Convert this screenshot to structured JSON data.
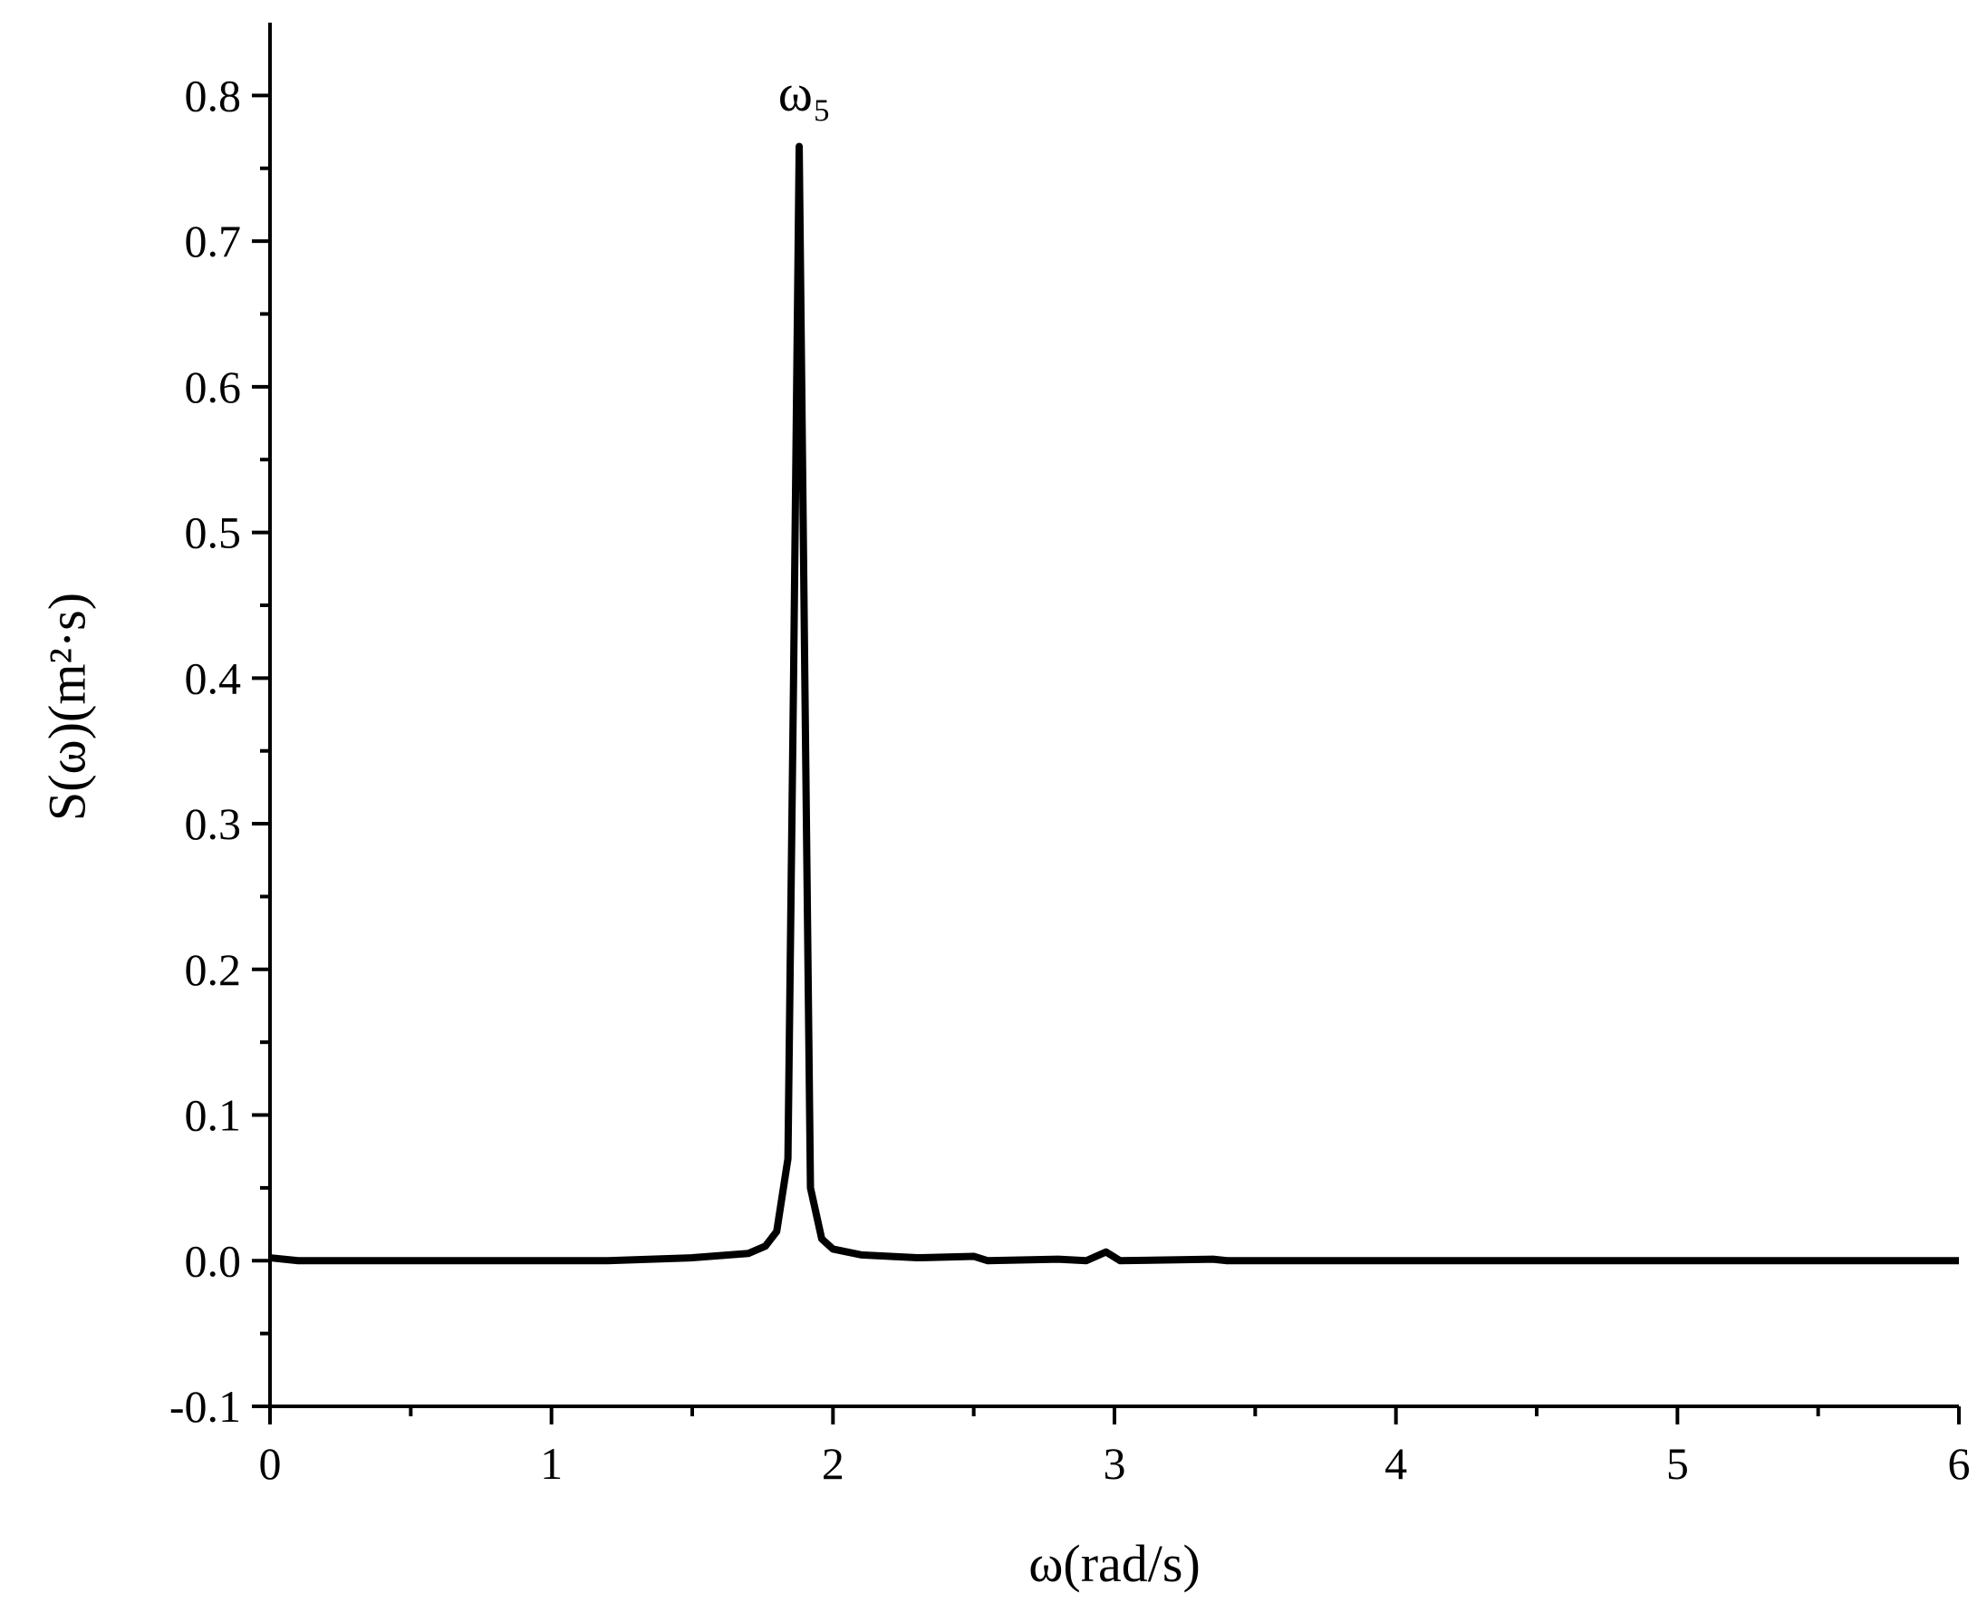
{
  "chart_data": {
    "type": "line",
    "x_label": "ω(rad/s)",
    "y_label": "S(ω)(m²·s)",
    "annotation": "ω₅",
    "x": [
      0,
      0.1,
      1.2,
      1.5,
      1.7,
      1.76,
      1.8,
      1.84,
      1.86,
      1.88,
      1.9,
      1.92,
      1.96,
      2.0,
      2.1,
      2.3,
      2.5,
      2.55,
      2.8,
      2.9,
      2.97,
      3.02,
      3.35,
      3.4,
      6
    ],
    "series": [
      {
        "color": "#000000",
        "values": [
          0.002,
          0,
          0,
          0.002,
          0.005,
          0.01,
          0.02,
          0.07,
          0.4,
          0.765,
          0.4,
          0.05,
          0.015,
          0.008,
          0.004,
          0.002,
          0.003,
          0,
          0.001,
          0,
          0.006,
          0,
          0.001,
          0,
          0
        ]
      }
    ],
    "xlim": [
      0,
      6
    ],
    "ylim": [
      -0.1,
      0.85
    ],
    "xticks": [
      0,
      1,
      2,
      3,
      4,
      5,
      6
    ],
    "yticks": [
      -0.1,
      0.0,
      0.1,
      0.2,
      0.3,
      0.4,
      0.5,
      0.6,
      0.7,
      0.8
    ],
    "ytick_labels": [
      "-0.1",
      "0.0",
      "0.1",
      "0.2",
      "0.3",
      "0.4",
      "0.5",
      "0.6",
      "0.7",
      "0.8"
    ],
    "xminorticks": [
      0.5,
      1.5,
      2.5,
      3.5,
      4.5,
      5.5
    ],
    "yminorticks": [
      -0.05,
      0.05,
      0.15,
      0.25,
      0.35,
      0.45,
      0.55,
      0.65,
      0.75
    ]
  }
}
